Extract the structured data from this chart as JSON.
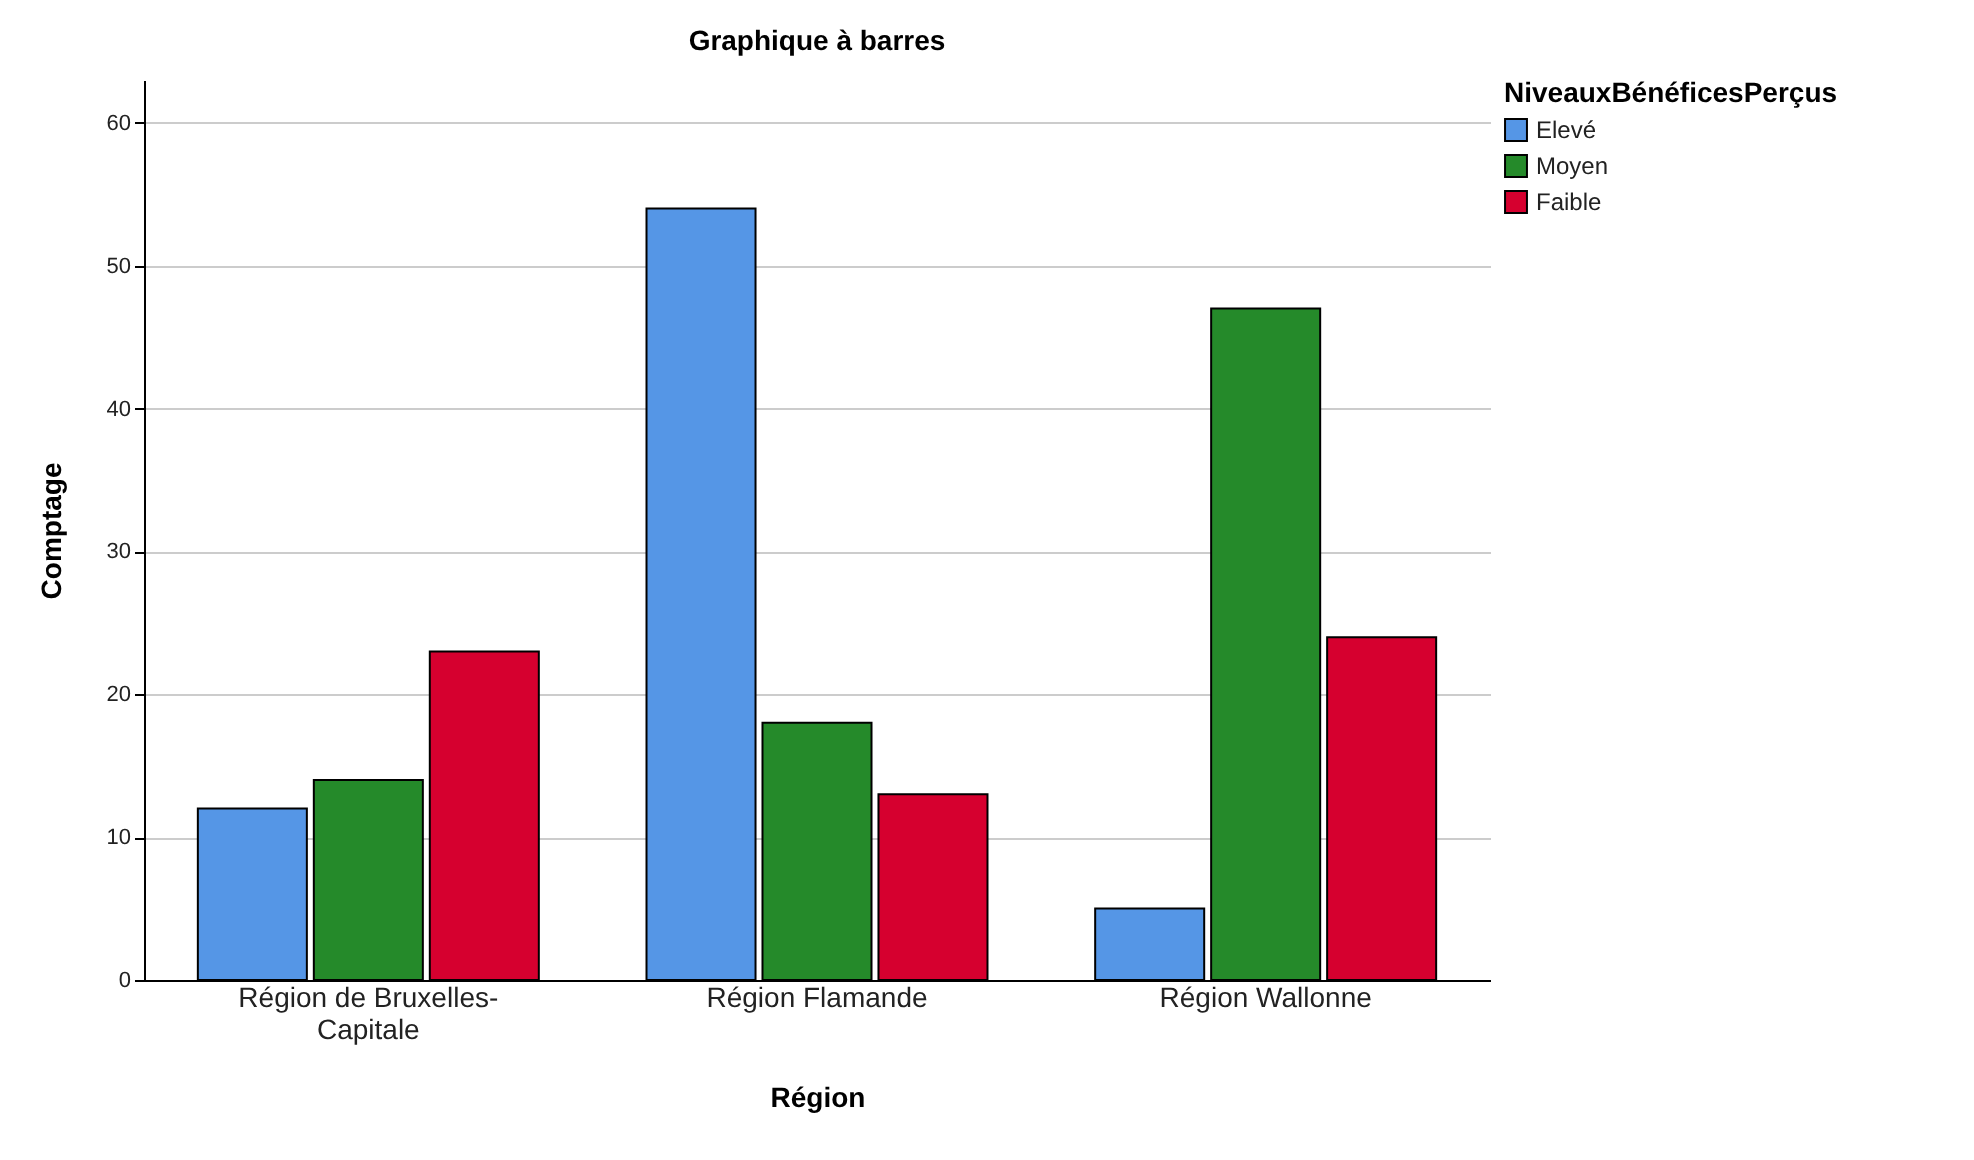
{
  "chart_data": {
    "type": "bar",
    "title": "Graphique à barres",
    "xlabel": "Région",
    "ylabel": "Comptage",
    "legend_title": "NiveauxBénéficesPerçus",
    "categories": [
      "Région de Bruxelles-Capitale",
      "Région Flamande",
      "Région Wallonne"
    ],
    "series": [
      {
        "name": "Elevé",
        "color": "#5596e6",
        "values": [
          12,
          54,
          5
        ]
      },
      {
        "name": "Moyen",
        "color": "#258a2a",
        "values": [
          14,
          18,
          47
        ]
      },
      {
        "name": "Faible",
        "color": "#d6002f",
        "values": [
          23,
          13,
          24
        ]
      }
    ],
    "ylim": [
      0,
      63
    ],
    "yticks": [
      0,
      10,
      20,
      30,
      40,
      50,
      60
    ],
    "grid": "y",
    "legend": "top right"
  }
}
